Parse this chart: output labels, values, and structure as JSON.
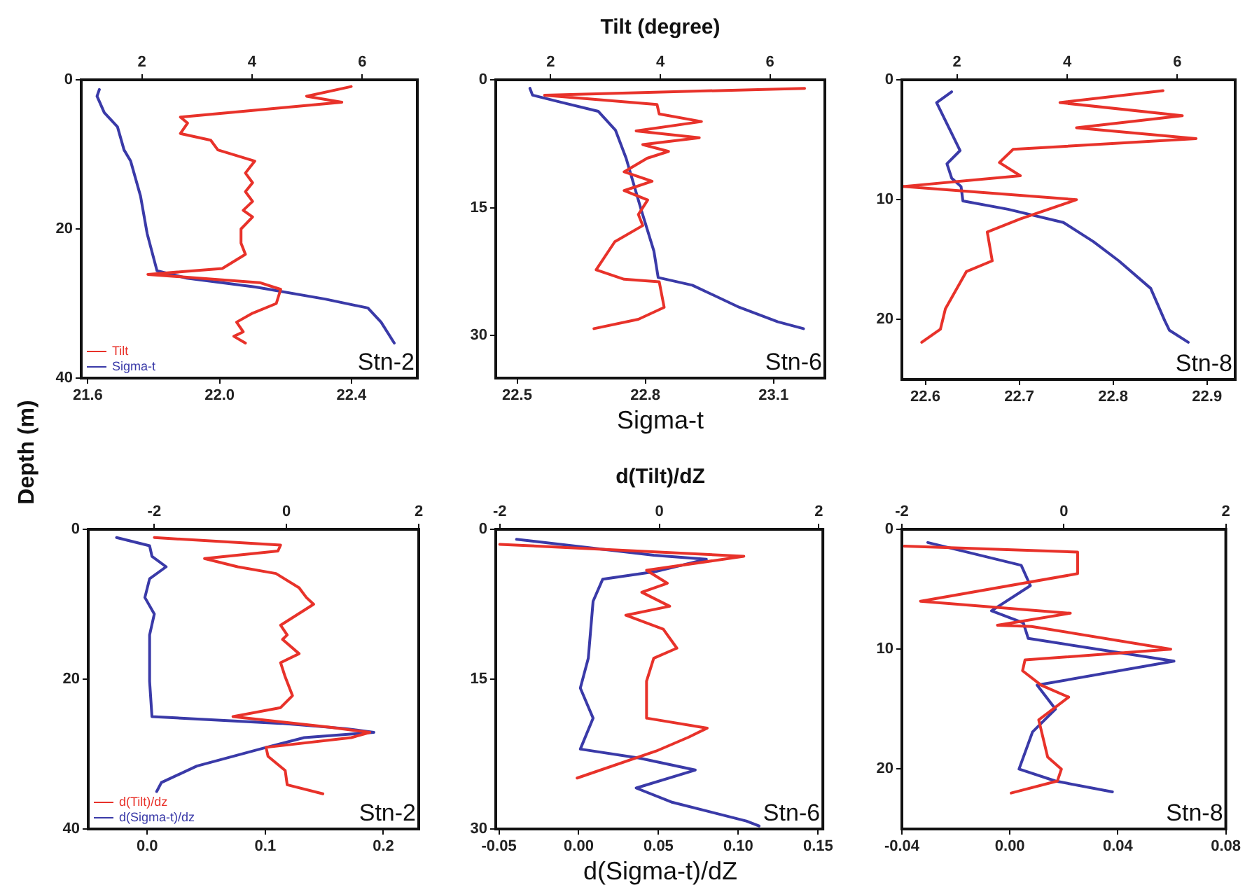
{
  "chart_data": [
    {
      "type": "line",
      "ylabel": "Depth (m)",
      "xlim": [
        21.58,
        22.6
      ],
      "xticks": [
        21.6,
        {
          "value": 22,
          "label": "22.0"
        },
        22.4
      ],
      "x2lim": [
        0.9,
        7
      ],
      "x2ticks": [
        2,
        4,
        6
      ],
      "ylim": [
        40,
        0
      ],
      "yticks": [
        0,
        20,
        40
      ],
      "grid": false,
      "legend": "bottom left",
      "annotations": [
        "Stn-2"
      ],
      "series": [
        {
          "name": "Tilt",
          "color": "#e8322a",
          "axis": "x2",
          "x": [
            5.8,
            4.99,
            5.63,
            2.7,
            2.83,
            2.7,
            3.25,
            3.38,
            4.05,
            3.88,
            4.01,
            3.88,
            4.01,
            3.84,
            4.01,
            3.8,
            3.8,
            3.88,
            3.46,
            2.11,
            4.14,
            4.52,
            4.44,
            4.01,
            3.72,
            3.84,
            3.67,
            3.88
          ],
          "values": [
            0.9,
            2.2,
            3.0,
            5,
            5.8,
            7.2,
            8.1,
            9.4,
            10.9,
            12.5,
            13.8,
            15,
            16.3,
            17.5,
            18.4,
            20,
            21.9,
            23.4,
            25.3,
            26.1,
            27.2,
            28.1,
            30,
            31.3,
            32.5,
            33.8,
            34.4,
            35.3
          ]
        },
        {
          "name": "Sigma-t",
          "color": "#3a3aa8",
          "x": [
            21.635,
            21.628,
            21.65,
            21.69,
            21.71,
            21.73,
            21.76,
            21.78,
            21.81,
            21.9,
            22.11,
            22.32,
            22.45,
            22.49,
            22.53
          ],
          "values": [
            1.3,
            2.2,
            4.4,
            6.3,
            9.4,
            10.9,
            15.6,
            20.6,
            25.6,
            26.6,
            27.8,
            29.4,
            30.6,
            32.5,
            35.3
          ]
        }
      ]
    },
    {
      "type": "line",
      "x2label": "Tilt (degree)",
      "xlabel": "Sigma-t",
      "xlim": [
        22.45,
        23.22
      ],
      "xticks": [
        22.5,
        22.8,
        23.1
      ],
      "x2lim": [
        1,
        7
      ],
      "x2ticks": [
        2,
        4,
        6
      ],
      "ylim": [
        35,
        0
      ],
      "yticks": [
        0,
        15,
        30
      ],
      "grid": false,
      "annotations": [
        "Stn-6"
      ],
      "series": [
        {
          "color": "#e8322a",
          "axis": "x2",
          "x": [
            6.63,
            1.89,
            3.94,
            3.98,
            4.75,
            3.56,
            4.71,
            3.68,
            4.15,
            3.76,
            3.34,
            3.85,
            3.34,
            3.77,
            3.6,
            3.68,
            3.17,
            2.83,
            3.34,
            3.98,
            4.07,
            3.6,
            2.79
          ],
          "values": [
            1.0,
            1.8,
            2.9,
            4.0,
            4.9,
            6.0,
            6.8,
            7.6,
            8.4,
            9.2,
            10.8,
            11.9,
            13.0,
            14.1,
            15.8,
            17.1,
            19.0,
            22.3,
            23.4,
            23.7,
            26.7,
            28.1,
            29.2
          ]
        },
        {
          "color": "#3a3aa8",
          "x": [
            22.53,
            22.536,
            22.6,
            22.69,
            22.73,
            22.755,
            22.79,
            22.82,
            22.83,
            22.91,
            23.02,
            23.11,
            23.17
          ],
          "values": [
            1.0,
            1.8,
            2.6,
            3.7,
            5.9,
            9.2,
            15.2,
            20.1,
            23.2,
            24.1,
            26.7,
            28.4,
            29.2
          ]
        }
      ]
    },
    {
      "type": "line",
      "xlim": [
        22.575,
        22.93
      ],
      "xticks": [
        22.6,
        22.7,
        22.8,
        22.9
      ],
      "x2lim": [
        1,
        7.05
      ],
      "x2ticks": [
        2,
        4,
        6
      ],
      "ylim": [
        25,
        0
      ],
      "yticks": [
        0,
        10,
        20
      ],
      "grid": false,
      "annotations": [
        "Stn-8"
      ],
      "series": [
        {
          "color": "#e8322a",
          "axis": "x2",
          "x": [
            5.74,
            3.87,
            6.09,
            4.17,
            6.34,
            3.02,
            2.77,
            3.15,
            1.02,
            4.17,
            3.15,
            2.55,
            2.64,
            2.17,
            1.79,
            1.7,
            1.36
          ],
          "values": [
            0.9,
            1.9,
            3.0,
            4.0,
            4.9,
            5.8,
            6.9,
            8.0,
            8.9,
            10.0,
            11.6,
            12.7,
            15.1,
            16.0,
            19.1,
            20.8,
            21.9
          ]
        },
        {
          "color": "#3a3aa8",
          "x": [
            22.628,
            22.612,
            22.637,
            22.623,
            22.628,
            22.638,
            22.64,
            22.688,
            22.747,
            22.779,
            22.806,
            22.84,
            22.855,
            22.86,
            22.88
          ],
          "values": [
            1.0,
            1.9,
            5.9,
            7.0,
            8.2,
            8.9,
            10.1,
            10.8,
            11.9,
            13.5,
            15.1,
            17.4,
            20.1,
            20.9,
            21.9
          ]
        }
      ]
    },
    {
      "type": "line",
      "xlim": [
        -0.05,
        0.23
      ],
      "xticks": [
        {
          "value": 0,
          "label": "0.0"
        },
        0.1,
        0.2
      ],
      "x2lim": [
        -3,
        2
      ],
      "x2ticks": [
        -2,
        0,
        2
      ],
      "ylim": [
        40,
        0
      ],
      "yticks": [
        0,
        20,
        40
      ],
      "grid": false,
      "legend": "bottom left",
      "annotations": [
        "Stn-2"
      ],
      "series": [
        {
          "name": "d(Tilt)/dz",
          "color": "#e8322a",
          "axis": "x2",
          "x": [
            -2.0,
            -0.09,
            -0.13,
            -1.24,
            -0.74,
            -0.16,
            0.19,
            0.3,
            0.41,
            -0.09,
            0.01,
            -0.06,
            0.19,
            -0.09,
            -0.02,
            0.09,
            -0.09,
            -0.81,
            0.64,
            1.26,
            0.98,
            -0.31,
            -0.28,
            -0.02,
            0.01,
            0.55
          ],
          "values": [
            1.1,
            2.1,
            2.9,
            3.9,
            5.0,
            5.9,
            7.8,
            9.1,
            10,
            12.8,
            14.1,
            14.7,
            16.6,
            17.8,
            19.7,
            22.2,
            23.8,
            25,
            26.4,
            27.1,
            27.8,
            29.1,
            30.3,
            32.2,
            34.1,
            35.3
          ]
        },
        {
          "name": "d(Sigma-t)/dz",
          "color": "#3a3aa8",
          "x": [
            -0.026,
            0.002,
            0.004,
            0.016,
            0.002,
            -0.002,
            0.006,
            0.002,
            0.002,
            0.004,
            0.113,
            0.168,
            0.192,
            0.133,
            0.101,
            0.042,
            0.012,
            0.008
          ],
          "values": [
            1.1,
            2.2,
            3.6,
            5.0,
            6.6,
            9.1,
            11.3,
            14.1,
            20.3,
            25,
            25.9,
            26.6,
            27.1,
            27.8,
            29.1,
            31.6,
            33.8,
            35
          ]
        }
      ]
    },
    {
      "type": "line",
      "x2label": "d(Tilt)/dZ",
      "xlabel": "d(Sigma-t)/dZ",
      "xlim": [
        -0.052,
        0.153
      ],
      "xticks": [
        -0.05,
        {
          "value": 0,
          "label": "0.00"
        },
        0.05,
        {
          "value": 0.1,
          "label": "0.10"
        },
        0.15
      ],
      "x2lim": [
        -2.05,
        2.05
      ],
      "x2ticks": [
        -2,
        0,
        2
      ],
      "ylim": [
        30,
        0
      ],
      "yticks": [
        0,
        15,
        30
      ],
      "grid": false,
      "annotations": [
        "Stn-6"
      ],
      "series": [
        {
          "color": "#e8322a",
          "axis": "x2",
          "x": [
            -2.0,
            1.06,
            -0.16,
            0.1,
            -0.22,
            0.13,
            -0.42,
            0.05,
            0.22,
            -0.07,
            -0.16,
            -0.16,
            0.6,
            0.37,
            -0.04,
            -1.03
          ],
          "values": [
            1.5,
            2.7,
            4.1,
            5.4,
            6.3,
            7.7,
            8.6,
            10.0,
            11.9,
            12.9,
            15.2,
            18.9,
            19.9,
            20.8,
            22.2,
            24.9
          ]
        },
        {
          "color": "#3a3aa8",
          "x": [
            -0.039,
            0.047,
            0.08,
            0.049,
            0.015,
            0.009,
            0.006,
            0.001,
            0.009,
            0.001,
            0.038,
            0.073,
            0.036,
            0.058,
            0.105,
            0.113
          ],
          "values": [
            1.0,
            2.6,
            3.0,
            4.2,
            5.0,
            7.2,
            12.9,
            15.9,
            18.9,
            22.0,
            22.9,
            24.1,
            25.9,
            27.3,
            29.2,
            29.7
          ]
        }
      ]
    },
    {
      "type": "line",
      "xlim": [
        -0.04,
        0.08
      ],
      "xticks": [
        -0.04,
        {
          "value": 0,
          "label": "0.00"
        },
        0.04,
        0.08
      ],
      "x2lim": [
        -2,
        2
      ],
      "x2ticks": [
        -2,
        0,
        2
      ],
      "ylim": [
        25,
        0
      ],
      "yticks": [
        0,
        10,
        20
      ],
      "grid": false,
      "annotations": [
        "Stn-8"
      ],
      "series": [
        {
          "color": "#e8322a",
          "axis": "x2",
          "x": [
            -1.97,
            0.17,
            0.17,
            -1.77,
            0.08,
            -0.82,
            -0.4,
            1.32,
            -0.48,
            -0.51,
            -0.28,
            0.06,
            -0.31,
            -0.2,
            -0.03,
            -0.08,
            -0.65
          ],
          "values": [
            1.4,
            1.9,
            3.7,
            6.0,
            7.0,
            8.0,
            8.1,
            10.0,
            10.9,
            11.8,
            13.0,
            14.0,
            15.9,
            19.0,
            20.0,
            21.0,
            22.0
          ]
        },
        {
          "color": "#3a3aa8",
          "x": [
            -0.0304,
            0.0042,
            0.0076,
            -0.0068,
            0.005,
            0.0068,
            0.0608,
            0.0101,
            0.0169,
            0.0084,
            0.0034,
            0.0169,
            0.038
          ],
          "values": [
            1.1,
            3.0,
            4.7,
            6.8,
            7.8,
            9.1,
            11.0,
            13.0,
            15.0,
            16.9,
            20.0,
            21.0,
            21.9
          ]
        }
      ]
    }
  ]
}
